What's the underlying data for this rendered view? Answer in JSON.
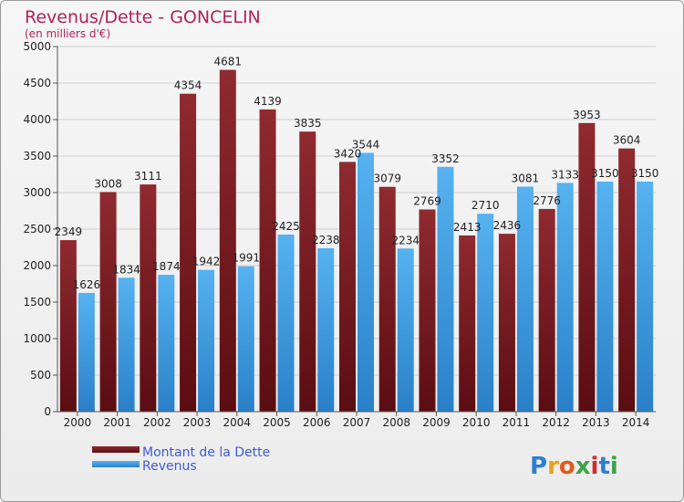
{
  "chart_data": {
    "type": "bar",
    "title": "Revenus/Dette - GONCELIN",
    "subtitle": "(en milliers d'€)",
    "categories": [
      "2000",
      "2001",
      "2002",
      "2003",
      "2004",
      "2005",
      "2006",
      "2007",
      "2008",
      "2009",
      "2010",
      "2011",
      "2012",
      "2013",
      "2014"
    ],
    "series": [
      {
        "name": "Montant de la Dette",
        "color": "#7a1f24",
        "values": [
          2349,
          3008,
          3111,
          4354,
          4681,
          4139,
          3835,
          3420,
          3079,
          2769,
          2413,
          2436,
          2776,
          3953,
          3604
        ]
      },
      {
        "name": "Revenus",
        "color": "#3d9be0",
        "values": [
          1626,
          1834,
          1874,
          1942,
          1991,
          2425,
          2238,
          3544,
          2234,
          3352,
          2710,
          3081,
          3133,
          3150,
          3150
        ]
      }
    ],
    "ylim": [
      0,
      5000
    ],
    "yticks": [
      0,
      500,
      1000,
      1500,
      2000,
      2500,
      3000,
      3500,
      4000,
      4500,
      5000
    ],
    "grid": true,
    "legend_position": "bottom-left"
  },
  "brand": {
    "logo_text": "Proxiti"
  }
}
